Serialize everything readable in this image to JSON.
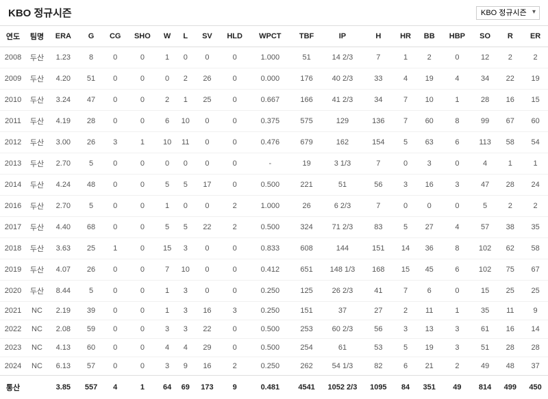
{
  "header": {
    "title": "KBO 정규시즌",
    "dropdownSelected": "KBO 정규시즌"
  },
  "columns": [
    "연도",
    "팀명",
    "ERA",
    "G",
    "CG",
    "SHO",
    "W",
    "L",
    "SV",
    "HLD",
    "WPCT",
    "TBF",
    "IP",
    "H",
    "HR",
    "BB",
    "HBP",
    "SO",
    "R",
    "ER"
  ],
  "rows": [
    [
      "2008",
      "두산",
      "1.23",
      "8",
      "0",
      "0",
      "1",
      "0",
      "0",
      "0",
      "1.000",
      "51",
      "14 2/3",
      "7",
      "1",
      "2",
      "0",
      "12",
      "2",
      "2"
    ],
    [
      "2009",
      "두산",
      "4.20",
      "51",
      "0",
      "0",
      "0",
      "2",
      "26",
      "0",
      "0.000",
      "176",
      "40 2/3",
      "33",
      "4",
      "19",
      "4",
      "34",
      "22",
      "19"
    ],
    [
      "2010",
      "두산",
      "3.24",
      "47",
      "0",
      "0",
      "2",
      "1",
      "25",
      "0",
      "0.667",
      "166",
      "41 2/3",
      "34",
      "7",
      "10",
      "1",
      "28",
      "16",
      "15"
    ],
    [
      "2011",
      "두산",
      "4.19",
      "28",
      "0",
      "0",
      "6",
      "10",
      "0",
      "0",
      "0.375",
      "575",
      "129",
      "136",
      "7",
      "60",
      "8",
      "99",
      "67",
      "60"
    ],
    [
      "2012",
      "두산",
      "3.00",
      "26",
      "3",
      "1",
      "10",
      "11",
      "0",
      "0",
      "0.476",
      "679",
      "162",
      "154",
      "5",
      "63",
      "6",
      "113",
      "58",
      "54"
    ],
    [
      "2013",
      "두산",
      "2.70",
      "5",
      "0",
      "0",
      "0",
      "0",
      "0",
      "0",
      "-",
      "19",
      "3 1/3",
      "7",
      "0",
      "3",
      "0",
      "4",
      "1",
      "1"
    ],
    [
      "2014",
      "두산",
      "4.24",
      "48",
      "0",
      "0",
      "5",
      "5",
      "17",
      "0",
      "0.500",
      "221",
      "51",
      "56",
      "3",
      "16",
      "3",
      "47",
      "28",
      "24"
    ],
    [
      "2016",
      "두산",
      "2.70",
      "5",
      "0",
      "0",
      "1",
      "0",
      "0",
      "2",
      "1.000",
      "26",
      "6 2/3",
      "7",
      "0",
      "0",
      "0",
      "5",
      "2",
      "2"
    ],
    [
      "2017",
      "두산",
      "4.40",
      "68",
      "0",
      "0",
      "5",
      "5",
      "22",
      "2",
      "0.500",
      "324",
      "71 2/3",
      "83",
      "5",
      "27",
      "4",
      "57",
      "38",
      "35"
    ],
    [
      "2018",
      "두산",
      "3.63",
      "25",
      "1",
      "0",
      "15",
      "3",
      "0",
      "0",
      "0.833",
      "608",
      "144",
      "151",
      "14",
      "36",
      "8",
      "102",
      "62",
      "58"
    ],
    [
      "2019",
      "두산",
      "4.07",
      "26",
      "0",
      "0",
      "7",
      "10",
      "0",
      "0",
      "0.412",
      "651",
      "148 1/3",
      "168",
      "15",
      "45",
      "6",
      "102",
      "75",
      "67"
    ],
    [
      "2020",
      "두산",
      "8.44",
      "5",
      "0",
      "0",
      "1",
      "3",
      "0",
      "0",
      "0.250",
      "125",
      "26 2/3",
      "41",
      "7",
      "6",
      "0",
      "15",
      "25",
      "25"
    ],
    [
      "2021",
      "NC",
      "2.19",
      "39",
      "0",
      "0",
      "1",
      "3",
      "16",
      "3",
      "0.250",
      "151",
      "37",
      "27",
      "2",
      "11",
      "1",
      "35",
      "11",
      "9"
    ],
    [
      "2022",
      "NC",
      "2.08",
      "59",
      "0",
      "0",
      "3",
      "3",
      "22",
      "0",
      "0.500",
      "253",
      "60 2/3",
      "56",
      "3",
      "13",
      "3",
      "61",
      "16",
      "14"
    ],
    [
      "2023",
      "NC",
      "4.13",
      "60",
      "0",
      "0",
      "4",
      "4",
      "29",
      "0",
      "0.500",
      "254",
      "61",
      "53",
      "5",
      "19",
      "3",
      "51",
      "28",
      "28"
    ],
    [
      "2024",
      "NC",
      "6.13",
      "57",
      "0",
      "0",
      "3",
      "9",
      "16",
      "2",
      "0.250",
      "262",
      "54 1/3",
      "82",
      "6",
      "21",
      "2",
      "49",
      "48",
      "37"
    ]
  ],
  "totals": [
    "통산",
    "",
    "3.85",
    "557",
    "4",
    "1",
    "64",
    "69",
    "173",
    "9",
    "0.481",
    "4541",
    "1052 2/3",
    "1095",
    "84",
    "351",
    "49",
    "814",
    "499",
    "450"
  ]
}
